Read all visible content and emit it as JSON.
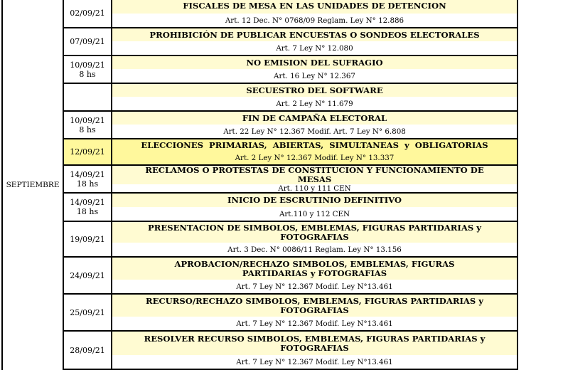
{
  "month": "SEPTIEMBRE",
  "colors": {
    "title_bg": "#fffbd2",
    "highlight_bg": "#fff89c",
    "border": "#000000"
  },
  "rows": [
    {
      "date": "02/09/21",
      "time": "",
      "title": "FISCALES DE MESA EN LAS UNIDADES DE DETENCION",
      "ref": "Art. 12 Dec. N° 0768/09 Reglam. Ley N° 12.886",
      "highlight": false
    },
    {
      "date": "07/09/21",
      "time": "",
      "title": "PROHIBICIÓN DE PUBLICAR ENCUESTAS O SONDEOS ELECTORALES",
      "ref": "Art. 7 Ley N° 12.080",
      "highlight": false
    },
    {
      "date": "10/09/21",
      "time": "8 hs",
      "title": "NO EMISION DEL SUFRAGIO",
      "ref": "Art. 16 Ley N° 12.367",
      "highlight": false
    },
    {
      "date": "",
      "time": "",
      "title": "SECUESTRO DEL SOFTWARE",
      "ref": "Art. 2 Ley N° 11.679",
      "highlight": false
    },
    {
      "date": "10/09/21",
      "time": "8 hs",
      "title": "FIN DE CAMPAÑA ELECTORAL",
      "ref": "Art. 22 Ley N° 12.367 Modif. Art. 7 Ley N° 6.808",
      "highlight": false
    },
    {
      "date": "12/09/21",
      "time": "",
      "title": "ELECCIONES PRIMARIAS, ABIERTAS, SIMULTANEAS y OBLIGATORIAS",
      "ref": "Art. 2 Ley N° 12.367 Modif. Ley N° 13.337",
      "highlight": true
    },
    {
      "date": "14/09/21",
      "time": "18 hs",
      "title": "RECLAMOS O PROTESTAS DE CONSTITUCION Y FUNCIONAMIENTO DE MESAS",
      "ref": "Art. 110 y 111 CEN",
      "highlight": false
    },
    {
      "date": "14/09/21",
      "time": "18 hs",
      "title": "INICIO DE ESCRUTINIO DEFINITIVO",
      "ref": "Art.110 y 112 CEN",
      "highlight": false
    },
    {
      "date": "19/09/21",
      "time": "",
      "title": "PRESENTACION DE SIMBOLOS, EMBLEMAS, FIGURAS PARTIDARIAS y FOTOGRAFIAS",
      "ref": "Art. 3 Dec. N° 0086/11  Reglam. Ley N° 13.156",
      "highlight": false
    },
    {
      "date": "24/09/21",
      "time": "",
      "title": "APROBACION/RECHAZO SIMBOLOS, EMBLEMAS, FIGURAS PARTIDARIAS y FOTOGRAFIAS",
      "ref": "Art. 7 Ley N° 12.367 Modif. Ley N°13.461",
      "highlight": false
    },
    {
      "date": "25/09/21",
      "time": "",
      "title": "RECURSO/RECHAZO SIMBOLOS, EMBLEMAS, FIGURAS PARTIDARIAS y FOTOGRAFIAS",
      "ref": "Art. 7 Ley N° 12.367 Modif. Ley N°13.461",
      "highlight": false
    },
    {
      "date": "28/09/21",
      "time": "",
      "title": "RESOLVER RECURSO SIMBOLOS, EMBLEMAS, FIGURAS PARTIDARIAS y FOTOGRAFIAS",
      "ref": "Art. 7 Ley N° 12.367 Modif. Ley N°13.461",
      "highlight": false
    }
  ]
}
